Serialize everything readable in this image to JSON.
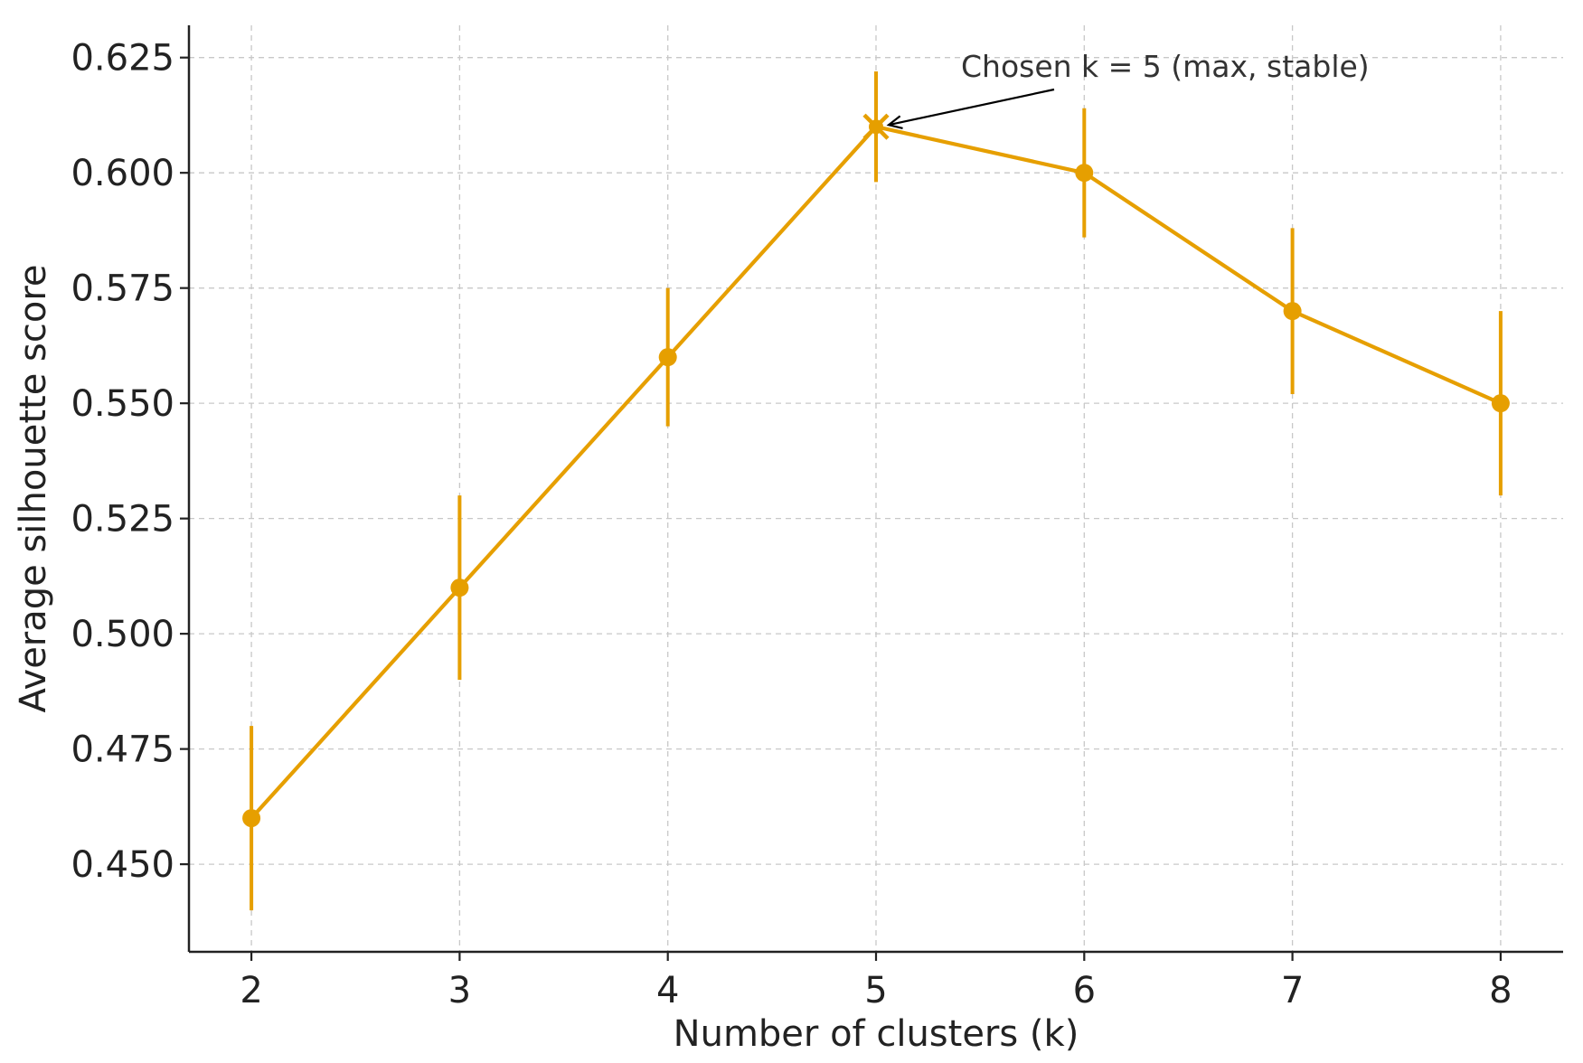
{
  "chart_data": {
    "type": "line",
    "xlabel": "Number of clusters (k)",
    "ylabel": "Average silhouette score",
    "x": [
      2,
      3,
      4,
      5,
      6,
      7,
      8
    ],
    "xticks": [
      "2",
      "3",
      "4",
      "5",
      "6",
      "7",
      "8"
    ],
    "xlim": [
      1.7,
      8.3
    ],
    "ylim": [
      0.431,
      0.632
    ],
    "yticks": [
      "0.450",
      "0.475",
      "0.500",
      "0.525",
      "0.550",
      "0.575",
      "0.600",
      "0.625"
    ],
    "series": [
      {
        "values": [
          0.46,
          0.51,
          0.56,
          0.61,
          0.6,
          0.57,
          0.55
        ],
        "error": [
          0.02,
          0.02,
          0.015,
          0.012,
          0.014,
          0.018,
          0.02
        ],
        "color": "#E69F00",
        "marker": "circle"
      }
    ],
    "highlight": {
      "x": 5,
      "y": 0.61,
      "marker": "x"
    },
    "annotation": {
      "text": "Chosen k = 5 (max, stable)",
      "point_x": 5,
      "point_y": 0.61
    },
    "grid": true
  }
}
